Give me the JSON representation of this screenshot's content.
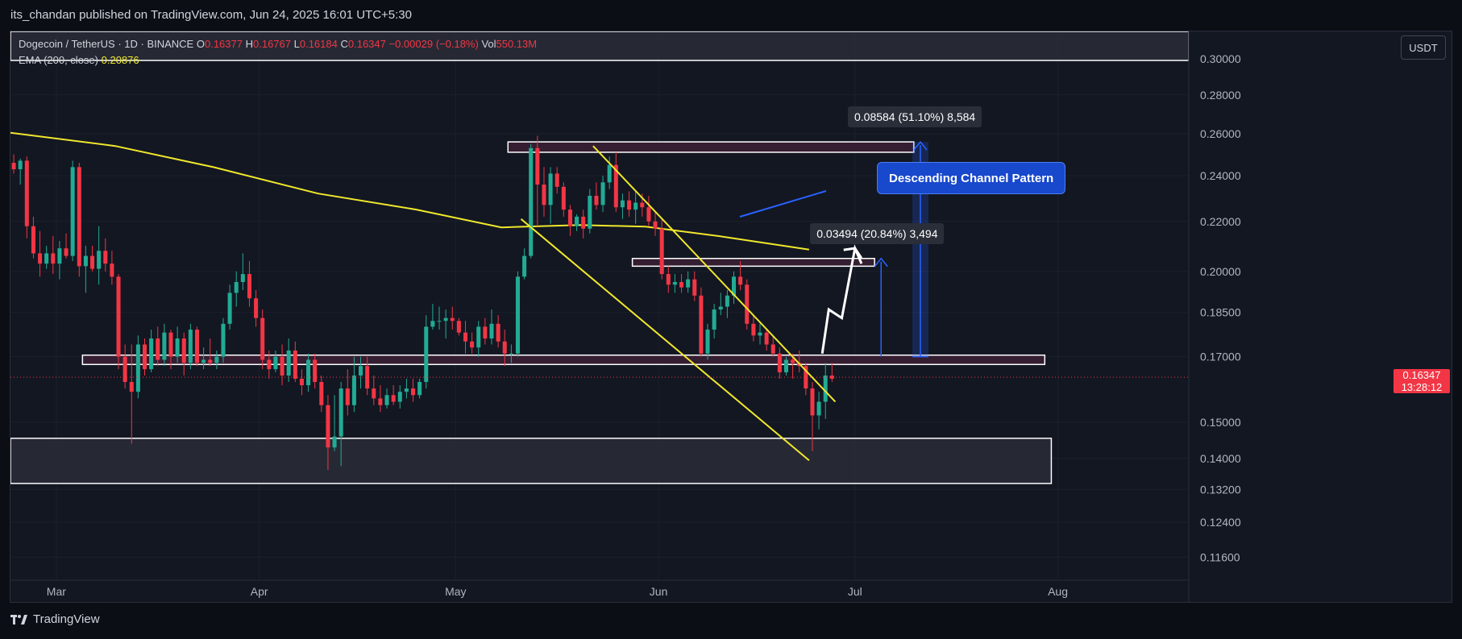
{
  "header": {
    "publish_line": "its_chandan published on TradingView.com, Jun 24, 2025 16:01 UTC+5:30"
  },
  "legend": {
    "symbol": "Dogecoin / TetherUS · 1D · BINANCE",
    "o_label": "O",
    "o_value": "0.16377",
    "h_label": "H",
    "h_value": "0.16767",
    "l_label": "L",
    "l_value": "0.16184",
    "c_label": "C",
    "c_value": "0.16347",
    "change": "−0.00029 (−0.18%)",
    "vol_label": "Vol",
    "vol_value": "550.13M",
    "ema_label": "EMA (200, close)",
    "ema_value": "0.20876"
  },
  "price_axis": {
    "currency": "USDT",
    "last_price": "0.16347",
    "countdown": "13:28:12"
  },
  "footer": {
    "brand": "TradingView"
  },
  "annotations": {
    "measure_big": "0.08584 (51.10%) 8,584",
    "measure_small": "0.03494 (20.84%) 3,494",
    "pattern_label": "Descending Channel Pattern"
  },
  "colors": {
    "up": "#22ab94",
    "down": "#f23645",
    "ema": "#f0e82c",
    "trendline": "#f0e82c",
    "zone": "#3a1f33",
    "measure": "#2962ff"
  },
  "chart_data": {
    "type": "candlestick",
    "symbol": "Dogecoin / TetherUS",
    "interval": "1D",
    "exchange": "BINANCE",
    "y_scale": "log",
    "y_ticks": [
      "0.30000",
      "0.28000",
      "0.26000",
      "0.24000",
      "0.22000",
      "0.20000",
      "0.18500",
      "0.17000",
      "0.15000",
      "0.14000",
      "0.13200",
      "0.12400",
      "0.11600"
    ],
    "x_ticks": [
      {
        "label": "Mar",
        "date": "2025-03-01"
      },
      {
        "label": "Apr",
        "date": "2025-04-01"
      },
      {
        "label": "May",
        "date": "2025-05-01"
      },
      {
        "label": "Jun",
        "date": "2025-06-01"
      },
      {
        "label": "Jul",
        "date": "2025-07-01"
      },
      {
        "label": "Aug",
        "date": "2025-08-01"
      }
    ],
    "x_range": [
      "2025-02-22",
      "2025-08-21"
    ],
    "y_range": [
      0.1112,
      0.316
    ],
    "first_candle_date": "2025-02-22",
    "candles": [
      [
        0.246,
        0.25,
        0.241,
        0.243
      ],
      [
        0.243,
        0.248,
        0.236,
        0.247
      ],
      [
        0.247,
        0.249,
        0.213,
        0.218
      ],
      [
        0.218,
        0.222,
        0.205,
        0.207
      ],
      [
        0.207,
        0.216,
        0.198,
        0.203
      ],
      [
        0.203,
        0.21,
        0.201,
        0.207
      ],
      [
        0.207,
        0.214,
        0.199,
        0.203
      ],
      [
        0.203,
        0.212,
        0.197,
        0.209
      ],
      [
        0.209,
        0.215,
        0.205,
        0.206
      ],
      [
        0.206,
        0.247,
        0.204,
        0.244
      ],
      [
        0.244,
        0.246,
        0.198,
        0.202
      ],
      [
        0.202,
        0.21,
        0.192,
        0.206
      ],
      [
        0.206,
        0.21,
        0.2,
        0.201
      ],
      [
        0.201,
        0.218,
        0.195,
        0.208
      ],
      [
        0.208,
        0.213,
        0.2,
        0.203
      ],
      [
        0.203,
        0.208,
        0.195,
        0.198
      ],
      [
        0.198,
        0.199,
        0.166,
        0.17
      ],
      [
        0.17,
        0.174,
        0.16,
        0.162
      ],
      [
        0.162,
        0.174,
        0.144,
        0.159
      ],
      [
        0.159,
        0.177,
        0.157,
        0.174
      ],
      [
        0.174,
        0.176,
        0.164,
        0.166
      ],
      [
        0.166,
        0.179,
        0.165,
        0.176
      ],
      [
        0.176,
        0.18,
        0.167,
        0.169
      ],
      [
        0.169,
        0.181,
        0.167,
        0.178
      ],
      [
        0.178,
        0.179,
        0.166,
        0.17
      ],
      [
        0.17,
        0.18,
        0.168,
        0.176
      ],
      [
        0.176,
        0.178,
        0.164,
        0.168
      ],
      [
        0.168,
        0.181,
        0.166,
        0.179
      ],
      [
        0.179,
        0.18,
        0.167,
        0.168
      ],
      [
        0.168,
        0.173,
        0.166,
        0.169
      ],
      [
        0.169,
        0.176,
        0.167,
        0.168
      ],
      [
        0.168,
        0.172,
        0.166,
        0.17
      ],
      [
        0.17,
        0.183,
        0.168,
        0.181
      ],
      [
        0.181,
        0.195,
        0.179,
        0.192
      ],
      [
        0.192,
        0.2,
        0.187,
        0.196
      ],
      [
        0.196,
        0.207,
        0.193,
        0.199
      ],
      [
        0.199,
        0.204,
        0.187,
        0.19
      ],
      [
        0.19,
        0.193,
        0.18,
        0.183
      ],
      [
        0.183,
        0.186,
        0.166,
        0.169
      ],
      [
        0.169,
        0.172,
        0.163,
        0.166
      ],
      [
        0.166,
        0.172,
        0.165,
        0.17
      ],
      [
        0.17,
        0.174,
        0.161,
        0.164
      ],
      [
        0.164,
        0.176,
        0.162,
        0.172
      ],
      [
        0.172,
        0.175,
        0.162,
        0.163
      ],
      [
        0.163,
        0.166,
        0.158,
        0.161
      ],
      [
        0.161,
        0.171,
        0.159,
        0.169
      ],
      [
        0.169,
        0.171,
        0.16,
        0.162
      ],
      [
        0.162,
        0.164,
        0.153,
        0.155
      ],
      [
        0.155,
        0.158,
        0.137,
        0.143
      ],
      [
        0.143,
        0.158,
        0.142,
        0.146
      ],
      [
        0.146,
        0.162,
        0.138,
        0.16
      ],
      [
        0.16,
        0.166,
        0.152,
        0.155
      ],
      [
        0.155,
        0.17,
        0.153,
        0.164
      ],
      [
        0.164,
        0.17,
        0.16,
        0.167
      ],
      [
        0.167,
        0.17,
        0.158,
        0.16
      ],
      [
        0.16,
        0.164,
        0.155,
        0.157
      ],
      [
        0.157,
        0.161,
        0.153,
        0.155
      ],
      [
        0.155,
        0.16,
        0.154,
        0.158
      ],
      [
        0.158,
        0.161,
        0.155,
        0.156
      ],
      [
        0.156,
        0.161,
        0.154,
        0.159
      ],
      [
        0.159,
        0.163,
        0.157,
        0.16
      ],
      [
        0.16,
        0.163,
        0.156,
        0.158
      ],
      [
        0.158,
        0.163,
        0.157,
        0.162
      ],
      [
        0.162,
        0.184,
        0.16,
        0.18
      ],
      [
        0.18,
        0.188,
        0.179,
        0.182
      ],
      [
        0.182,
        0.187,
        0.179,
        0.182
      ],
      [
        0.182,
        0.186,
        0.176,
        0.183
      ],
      [
        0.183,
        0.187,
        0.179,
        0.182
      ],
      [
        0.182,
        0.183,
        0.177,
        0.178
      ],
      [
        0.178,
        0.182,
        0.171,
        0.175
      ],
      [
        0.175,
        0.178,
        0.171,
        0.173
      ],
      [
        0.173,
        0.182,
        0.17,
        0.18
      ],
      [
        0.18,
        0.183,
        0.174,
        0.176
      ],
      [
        0.176,
        0.186,
        0.174,
        0.181
      ],
      [
        0.181,
        0.184,
        0.173,
        0.175
      ],
      [
        0.175,
        0.179,
        0.167,
        0.171
      ],
      [
        0.171,
        0.174,
        0.168,
        0.171
      ],
      [
        0.171,
        0.2,
        0.17,
        0.198
      ],
      [
        0.198,
        0.209,
        0.197,
        0.206
      ],
      [
        0.206,
        0.255,
        0.205,
        0.253
      ],
      [
        0.253,
        0.259,
        0.218,
        0.236
      ],
      [
        0.236,
        0.244,
        0.222,
        0.227
      ],
      [
        0.227,
        0.244,
        0.219,
        0.241
      ],
      [
        0.241,
        0.244,
        0.232,
        0.235
      ],
      [
        0.235,
        0.237,
        0.222,
        0.225
      ],
      [
        0.225,
        0.227,
        0.214,
        0.218
      ],
      [
        0.218,
        0.223,
        0.216,
        0.222
      ],
      [
        0.222,
        0.225,
        0.213,
        0.217
      ],
      [
        0.217,
        0.234,
        0.215,
        0.231
      ],
      [
        0.231,
        0.237,
        0.225,
        0.227
      ],
      [
        0.227,
        0.24,
        0.224,
        0.237
      ],
      [
        0.237,
        0.249,
        0.234,
        0.245
      ],
      [
        0.245,
        0.251,
        0.224,
        0.226
      ],
      [
        0.226,
        0.232,
        0.221,
        0.229
      ],
      [
        0.229,
        0.233,
        0.222,
        0.225
      ],
      [
        0.225,
        0.233,
        0.219,
        0.228
      ],
      [
        0.228,
        0.232,
        0.222,
        0.226
      ],
      [
        0.226,
        0.231,
        0.218,
        0.22
      ],
      [
        0.22,
        0.224,
        0.214,
        0.217
      ],
      [
        0.217,
        0.221,
        0.197,
        0.199
      ],
      [
        0.199,
        0.202,
        0.192,
        0.195
      ],
      [
        0.195,
        0.199,
        0.192,
        0.196
      ],
      [
        0.196,
        0.199,
        0.192,
        0.194
      ],
      [
        0.194,
        0.2,
        0.192,
        0.197
      ],
      [
        0.197,
        0.2,
        0.189,
        0.191
      ],
      [
        0.191,
        0.194,
        0.17,
        0.171
      ],
      [
        0.171,
        0.181,
        0.169,
        0.179
      ],
      [
        0.179,
        0.188,
        0.176,
        0.186
      ],
      [
        0.186,
        0.192,
        0.184,
        0.187
      ],
      [
        0.187,
        0.193,
        0.183,
        0.191
      ],
      [
        0.191,
        0.2,
        0.188,
        0.198
      ],
      [
        0.198,
        0.204,
        0.193,
        0.195
      ],
      [
        0.195,
        0.197,
        0.179,
        0.181
      ],
      [
        0.181,
        0.184,
        0.175,
        0.177
      ],
      [
        0.177,
        0.181,
        0.174,
        0.178
      ],
      [
        0.178,
        0.179,
        0.172,
        0.174
      ],
      [
        0.174,
        0.177,
        0.17,
        0.171
      ],
      [
        0.171,
        0.173,
        0.163,
        0.165
      ],
      [
        0.165,
        0.17,
        0.164,
        0.169
      ],
      [
        0.169,
        0.171,
        0.163,
        0.168
      ],
      [
        0.168,
        0.172,
        0.165,
        0.167
      ],
      [
        0.167,
        0.168,
        0.158,
        0.16
      ],
      [
        0.16,
        0.162,
        0.142,
        0.152
      ],
      [
        0.152,
        0.159,
        0.148,
        0.156
      ],
      [
        0.156,
        0.168,
        0.151,
        0.164
      ],
      [
        0.164,
        0.168,
        0.162,
        0.163
      ]
    ],
    "ema": {
      "name": "EMA (200, close)",
      "points": [
        {
          "date": "2025-02-22",
          "value": 0.2605
        },
        {
          "date": "2025-03-10",
          "value": 0.254
        },
        {
          "date": "2025-03-25",
          "value": 0.244
        },
        {
          "date": "2025-04-10",
          "value": 0.232
        },
        {
          "date": "2025-04-25",
          "value": 0.225
        },
        {
          "date": "2025-05-08",
          "value": 0.2175
        },
        {
          "date": "2025-05-20",
          "value": 0.2185
        },
        {
          "date": "2025-05-30",
          "value": 0.2178
        },
        {
          "date": "2025-06-10",
          "value": 0.214
        },
        {
          "date": "2025-06-24",
          "value": 0.2085
        }
      ]
    },
    "trendlines": [
      {
        "from": {
          "date": "2025-05-22",
          "value": 0.254
        },
        "to": {
          "date": "2025-06-28",
          "value": 0.156
        }
      },
      {
        "from": {
          "date": "2025-05-11",
          "value": 0.221
        },
        "to": {
          "date": "2025-06-24",
          "value": 0.1395
        }
      }
    ],
    "zones": [
      {
        "from": "2025-05-09",
        "to": "2025-07-10",
        "low": 0.251,
        "high": 0.256
      },
      {
        "from": "2025-05-28",
        "to": "2025-07-04",
        "low": 0.202,
        "high": 0.205
      },
      {
        "from": "2025-03-05",
        "to": "2025-07-30",
        "low": 0.1675,
        "high": 0.1705
      },
      {
        "from": "2025-02-22",
        "to": "2025-07-31",
        "low": 0.1335,
        "high": 0.1455
      },
      {
        "from": "2025-02-22",
        "to": "2025-08-21",
        "low": 0.299,
        "high": 0.316
      }
    ],
    "projection_path": [
      {
        "date": "2025-06-26",
        "value": 0.171
      },
      {
        "date": "2025-06-27",
        "value": 0.186
      },
      {
        "date": "2025-06-29",
        "value": 0.183
      },
      {
        "date": "2025-07-01",
        "value": 0.209
      },
      {
        "date": "2025-07-02",
        "value": 0.203
      }
    ],
    "measures": [
      {
        "label": "0.08584 (51.10%) 8,584",
        "date": "2025-07-11",
        "from": 0.17,
        "to": 0.256
      },
      {
        "label": "0.03494 (20.84%) 3,494",
        "date": "2025-07-05",
        "from": 0.17,
        "to": 0.205
      }
    ],
    "last_price": 0.16347
  }
}
